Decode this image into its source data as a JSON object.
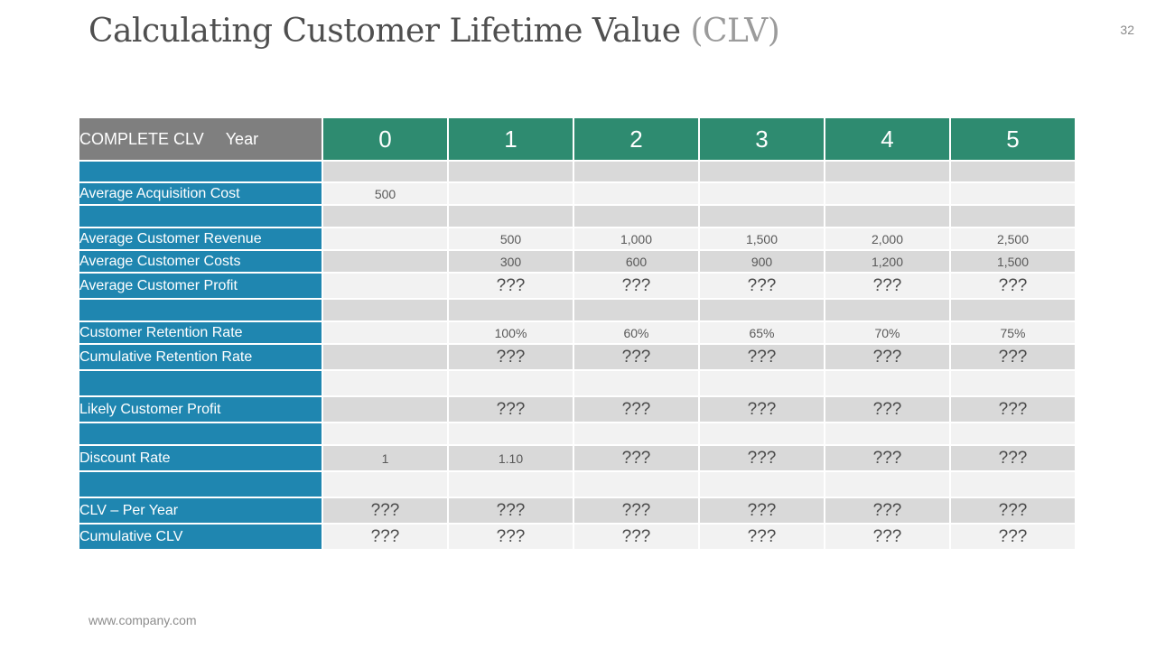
{
  "slide": {
    "title_main": "Calculating Customer Lifetime Value ",
    "title_accent": "(CLV)",
    "page_number": "32",
    "footer_url": "www.company.com"
  },
  "table": {
    "corner_label": "COMPLETE CLV",
    "corner_year": "Year",
    "years": [
      "0",
      "1",
      "2",
      "3",
      "4",
      "5"
    ],
    "rows": [
      {
        "label": "",
        "cells": [
          "",
          "",
          "",
          "",
          "",
          ""
        ]
      },
      {
        "label": "Average Acquisition Cost",
        "cells": [
          "500",
          "",
          "",
          "",
          "",
          ""
        ]
      },
      {
        "label": "",
        "cells": [
          "",
          "",
          "",
          "",
          "",
          ""
        ]
      },
      {
        "label": "Average Customer Revenue",
        "cells": [
          "",
          "500",
          "1,000",
          "1,500",
          "2,000",
          "2,500"
        ]
      },
      {
        "label": "Average Customer Costs",
        "cells": [
          "",
          "300",
          "600",
          "900",
          "1,200",
          "1,500"
        ]
      },
      {
        "label": "Average Customer Profit",
        "cells": [
          "",
          "???",
          "???",
          "???",
          "???",
          "???"
        ]
      },
      {
        "label": "",
        "cells": [
          "",
          "",
          "",
          "",
          "",
          ""
        ]
      },
      {
        "label": "Customer Retention Rate",
        "cells": [
          "",
          "100%",
          "60%",
          "65%",
          "70%",
          "75%"
        ]
      },
      {
        "label": "Cumulative  Retention Rate",
        "cells": [
          "",
          "???",
          "???",
          "???",
          "???",
          "???"
        ]
      },
      {
        "label": "",
        "cells": [
          "",
          "",
          "",
          "",
          "",
          ""
        ]
      },
      {
        "label": "Likely Customer  Profit",
        "cells": [
          "",
          "???",
          "???",
          "???",
          "???",
          "???"
        ]
      },
      {
        "label": "",
        "cells": [
          "",
          "",
          "",
          "",
          "",
          ""
        ]
      },
      {
        "label": "Discount Rate",
        "cells": [
          "1",
          "1.10",
          "???",
          "???",
          "???",
          "???"
        ]
      },
      {
        "label": "",
        "cells": [
          "",
          "",
          "",
          "",
          "",
          ""
        ]
      },
      {
        "label": "CLV – Per Year",
        "cells": [
          "???",
          "???",
          "???",
          "???",
          "???",
          "???"
        ]
      },
      {
        "label": "Cumulative  CLV",
        "cells": [
          "???",
          "???",
          "???",
          "???",
          "???",
          "???"
        ]
      }
    ]
  }
}
